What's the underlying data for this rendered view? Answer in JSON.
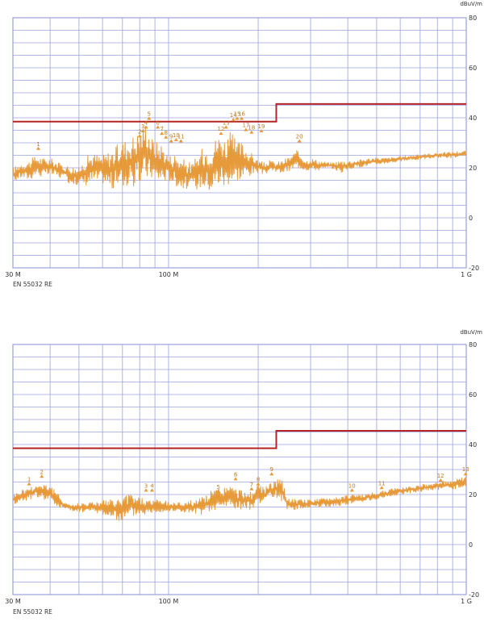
{
  "chart_data": [
    {
      "type": "line",
      "title": "",
      "xlabel": "",
      "ylabel": "dBuV/m",
      "x_scale": "log",
      "xlim": [
        30,
        1000
      ],
      "ylim": [
        -20,
        80
      ],
      "grid": true,
      "x_tick_labels": [
        {
          "value": 30,
          "label": "30 M"
        },
        {
          "value": 100,
          "label": "100 M"
        },
        {
          "value": 1000,
          "label": "1 G"
        }
      ],
      "y_ticks": [
        80,
        60,
        40,
        20,
        0,
        -20
      ],
      "footer": "EN 55032 RE",
      "colors": {
        "limit": "#b52424",
        "emission": "#e79a3a",
        "grid": "#9aa2dc"
      },
      "limit_line": {
        "name": "",
        "points": [
          [
            30,
            38.5
          ],
          [
            230,
            38.5
          ],
          [
            230,
            45.5
          ],
          [
            1000,
            45.5
          ]
        ]
      },
      "series": [
        {
          "name": "",
          "envelope": {
            "x": [
              30,
              32,
              34,
              36,
              38,
              40,
              43,
              46,
              50,
              53,
              56,
              60,
              65,
              70,
              75,
              80,
              84,
              87,
              90,
              95,
              100,
              105,
              110,
              120,
              130,
              140,
              145,
              150,
              155,
              160,
              165,
              170,
              175,
              180,
              190,
              200,
              210,
              220,
              230,
              240,
              250,
              270,
              290,
              300,
              320,
              350,
              380,
              420,
              480,
              550,
              650,
              800,
              1000
            ],
            "low": [
              14,
              16,
              15,
              17,
              16,
              17,
              16,
              14,
              13,
              13,
              14,
              14,
              11,
              12,
              12,
              13,
              15,
              16,
              14,
              14,
              15,
              13,
              12,
              11,
              12,
              10,
              12,
              13,
              11,
              14,
              13,
              15,
              14,
              16,
              17,
              18,
              17,
              19,
              18,
              18,
              18,
              20,
              19,
              19,
              19,
              20,
              18,
              20,
              21,
              22,
              23,
              24,
              24
            ],
            "high": [
              20,
              22,
              23,
              25,
              24,
              24,
              22,
              21,
              20,
              25,
              26,
              25,
              28,
              31,
              33,
              35,
              39,
              33,
              31,
              30,
              25,
              26,
              24,
              22,
              28,
              30,
              33,
              34,
              32,
              35,
              33,
              30,
              31,
              29,
              26,
              23,
              22,
              23,
              22,
              23,
              24,
              27,
              23,
              24,
              23,
              22,
              23,
              23,
              24,
              24,
              25,
              26,
              27
            ]
          }
        }
      ],
      "markers": [
        {
          "label": "1",
          "x": 36.5,
          "y": 27.5
        },
        {
          "label": "2",
          "x": 80,
          "y": 32.5
        },
        {
          "label": "3",
          "x": 82,
          "y": 34.5
        },
        {
          "label": "4",
          "x": 84,
          "y": 36
        },
        {
          "label": "5",
          "x": 86,
          "y": 39.5
        },
        {
          "label": "6",
          "x": 92,
          "y": 36
        },
        {
          "label": "7",
          "x": 95,
          "y": 33.5
        },
        {
          "label": "8",
          "x": 98,
          "y": 32
        },
        {
          "label": "9",
          "x": 102,
          "y": 30.5
        },
        {
          "label": "10",
          "x": 106,
          "y": 31
        },
        {
          "label": "11",
          "x": 110,
          "y": 30.5
        },
        {
          "label": "12",
          "x": 150,
          "y": 33.5
        },
        {
          "label": "13",
          "x": 156,
          "y": 36
        },
        {
          "label": "14",
          "x": 165,
          "y": 39
        },
        {
          "label": "15",
          "x": 170,
          "y": 39.5
        },
        {
          "label": "16",
          "x": 176,
          "y": 39.5
        },
        {
          "label": "17",
          "x": 182,
          "y": 35
        },
        {
          "label": "18",
          "x": 190,
          "y": 34
        },
        {
          "label": "19",
          "x": 205,
          "y": 34.5
        },
        {
          "label": "20",
          "x": 275,
          "y": 30.5
        }
      ]
    },
    {
      "type": "line",
      "title": "",
      "xlabel": "",
      "ylabel": "dBuV/m",
      "x_scale": "log",
      "xlim": [
        30,
        1000
      ],
      "ylim": [
        -20,
        80
      ],
      "grid": true,
      "x_tick_labels": [
        {
          "value": 30,
          "label": "30 M"
        },
        {
          "value": 100,
          "label": "100 M"
        },
        {
          "value": 1000,
          "label": "1 G"
        }
      ],
      "y_ticks": [
        80,
        60,
        40,
        20,
        0,
        -20
      ],
      "footer": "EN 55032 RE",
      "colors": {
        "limit": "#b52424",
        "emission": "#e79a3a",
        "grid": "#9aa2dc"
      },
      "limit_line": {
        "name": "",
        "points": [
          [
            30,
            38.5
          ],
          [
            230,
            38.5
          ],
          [
            230,
            45.5
          ],
          [
            1000,
            45.5
          ]
        ]
      },
      "series": [
        {
          "name": "",
          "envelope": {
            "x": [
              30,
              32,
              34,
              36,
              38,
              40,
              42,
              45,
              48,
              50,
              55,
              60,
              65,
              70,
              75,
              80,
              85,
              90,
              95,
              100,
              110,
              120,
              130,
              140,
              150,
              160,
              170,
              180,
              190,
              200,
              210,
              220,
              230,
              240,
              250,
              270,
              300,
              350,
              400,
              450,
              500,
              550,
              600,
              700,
              800,
              900,
              1000
            ],
            "low": [
              16,
              17,
              18,
              19,
              18,
              17,
              15,
              14,
              13,
              13,
              13,
              12,
              10,
              9,
              11,
              12,
              12,
              13,
              13,
              13,
              13,
              12,
              12,
              13,
              14,
              15,
              14,
              14,
              14,
              17,
              16,
              18,
              19,
              17,
              14,
              14,
              15,
              15,
              16,
              17,
              18,
              19,
              20,
              21,
              22,
              22,
              23
            ],
            "high": [
              20,
              22,
              23,
              24,
              25,
              24,
              21,
              17,
              16,
              17,
              17,
              18,
              18,
              19,
              21,
              19,
              18,
              18,
              18,
              17,
              17,
              18,
              19,
              22,
              23,
              24,
              22,
              22,
              21,
              24,
              23,
              25,
              26,
              26,
              19,
              18,
              18,
              19,
              20,
              20,
              21,
              22,
              23,
              24,
              25,
              26,
              27
            ]
          }
        }
      ],
      "markers": [
        {
          "label": "1",
          "x": 34,
          "y": 24
        },
        {
          "label": "2",
          "x": 37.5,
          "y": 27
        },
        {
          "label": "3",
          "x": 84,
          "y": 21.5
        },
        {
          "label": "4",
          "x": 88,
          "y": 21.5
        },
        {
          "label": "5",
          "x": 147,
          "y": 21
        },
        {
          "label": "6",
          "x": 168,
          "y": 26
        },
        {
          "label": "7",
          "x": 190,
          "y": 22
        },
        {
          "label": "8",
          "x": 200,
          "y": 24
        },
        {
          "label": "9",
          "x": 222,
          "y": 28
        },
        {
          "label": "10",
          "x": 413,
          "y": 21.5
        },
        {
          "label": "11",
          "x": 520,
          "y": 22.5
        },
        {
          "label": "12",
          "x": 820,
          "y": 25.5
        },
        {
          "label": "13",
          "x": 995,
          "y": 28
        }
      ]
    }
  ]
}
